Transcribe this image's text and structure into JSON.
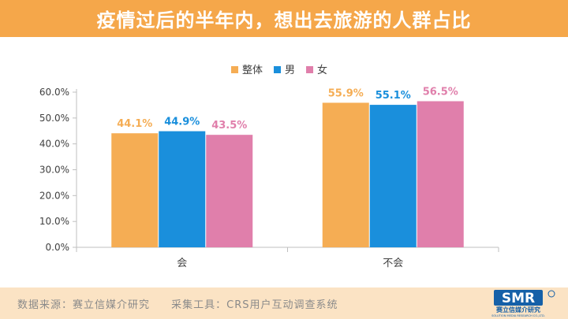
{
  "title": "疫情过后的半年内，想出去旅游的人群占比",
  "footer": {
    "source": "数据来源：赛立信媒介研究",
    "tool": "采集工具：CRS用户互动调查系统"
  },
  "logo": {
    "mark": "SMR",
    "name": "赛立信媒介研究",
    "sub": "SOLUTION MEDIA RESEARCH CO.,LTD."
  },
  "colors": {
    "title_bar": "#f5a74a",
    "footer_bar": "#fbe3c4",
    "series": [
      "#f5ad54",
      "#1a8fdc",
      "#e07fab"
    ]
  },
  "chart_data": {
    "type": "bar",
    "categories": [
      "会",
      "不会"
    ],
    "series": [
      {
        "name": "整体",
        "values": [
          44.1,
          55.9
        ],
        "labels": [
          "44.1%",
          "55.9%"
        ]
      },
      {
        "name": "男",
        "values": [
          44.9,
          55.1
        ],
        "labels": [
          "44.9%",
          "55.1%"
        ]
      },
      {
        "name": "女",
        "values": [
          43.5,
          56.5
        ],
        "labels": [
          "43.5%",
          "56.5%"
        ]
      }
    ],
    "ylim": [
      0,
      60
    ],
    "yticks": [
      "0.0%",
      "10.0%",
      "20.0%",
      "30.0%",
      "40.0%",
      "50.0%",
      "60.0%"
    ],
    "legend_position": "top-center",
    "grid": false
  }
}
